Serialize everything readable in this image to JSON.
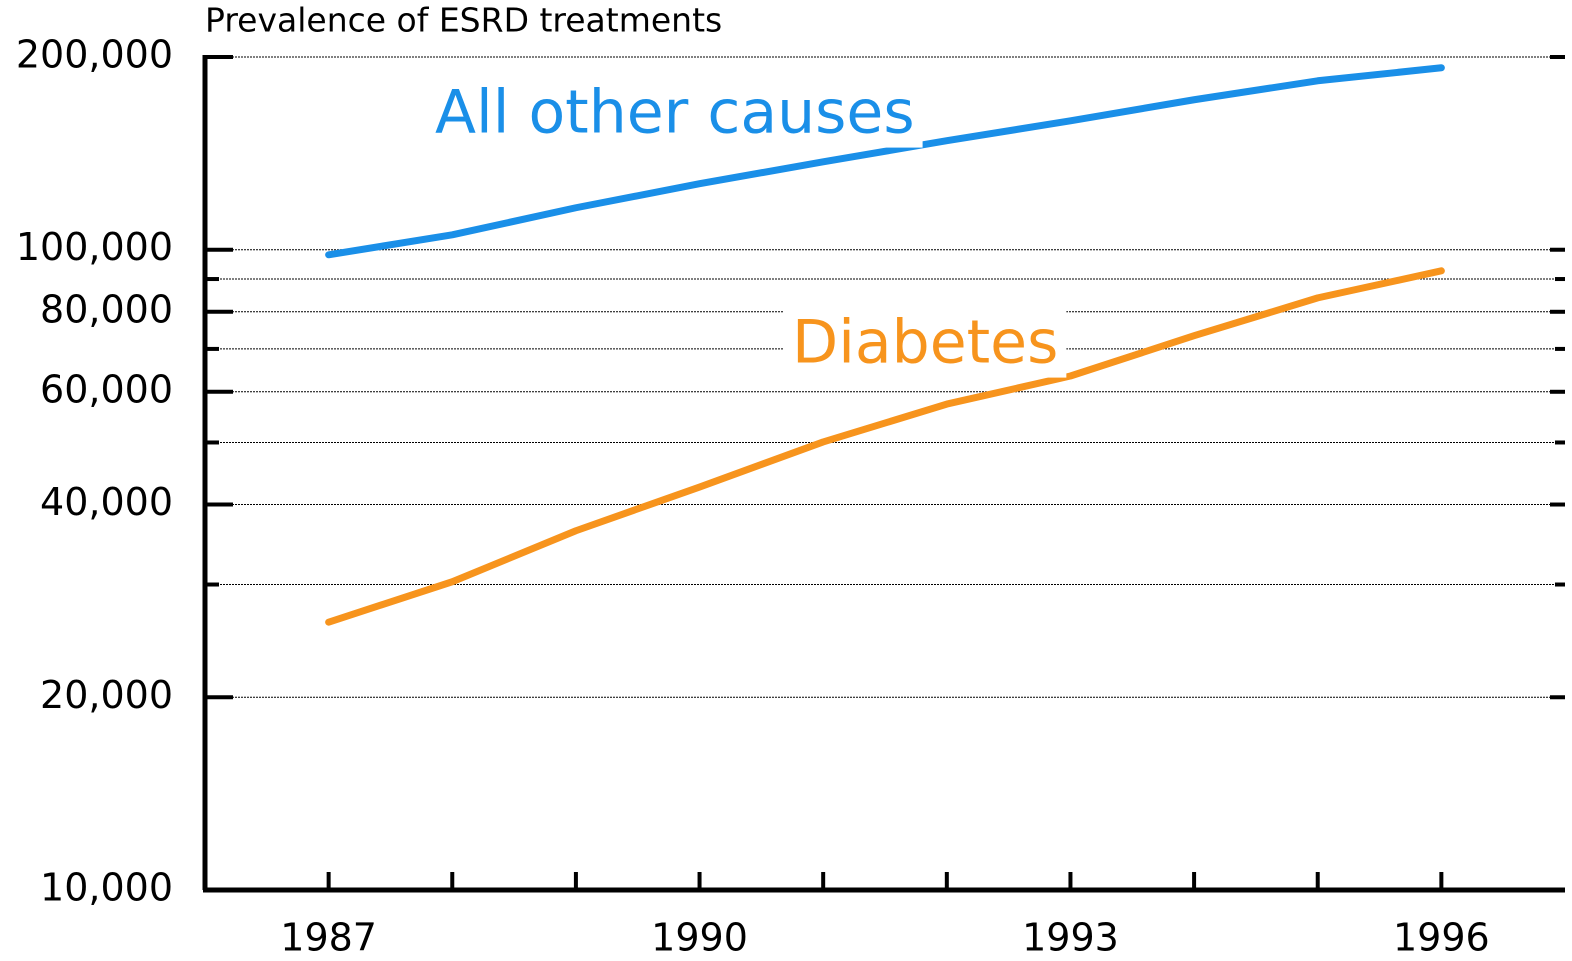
{
  "chart_data": {
    "type": "line",
    "title": "Prevalence of ESRD treatments",
    "x": [
      1987,
      1988,
      1989,
      1990,
      1991,
      1992,
      1993,
      1994,
      1995,
      1996
    ],
    "series": [
      {
        "name": "All other causes",
        "color": "#1a8fe8",
        "values": [
          98200,
          105500,
          116300,
          126800,
          137200,
          148000,
          159000,
          171500,
          183600,
          192400
        ]
      },
      {
        "name": "Diabetes",
        "color": "#f7941d",
        "values": [
          26200,
          30300,
          36400,
          42600,
          50100,
          57400,
          63500,
          73400,
          84100,
          92700
        ]
      }
    ],
    "xlim": [
      1986,
      1997
    ],
    "xticks": [
      1987,
      1990,
      1993,
      1996
    ],
    "minor_xticks": [
      1988,
      1989,
      1991,
      1992,
      1994,
      1995
    ],
    "ylim": [
      10000,
      200000
    ],
    "log_y": true,
    "yticks": [
      {
        "value": 10000,
        "label": "10,000"
      },
      {
        "value": 20000,
        "label": "20,000"
      },
      {
        "value": 40000,
        "label": "40,000"
      },
      {
        "value": 60000,
        "label": "60,000"
      },
      {
        "value": 80000,
        "label": "80,000"
      },
      {
        "value": 100000,
        "label": "100,000"
      },
      {
        "value": 200000,
        "label": "200,000"
      }
    ],
    "minor_yticks": [
      30000,
      50000,
      70000,
      90000
    ],
    "grid": true
  }
}
